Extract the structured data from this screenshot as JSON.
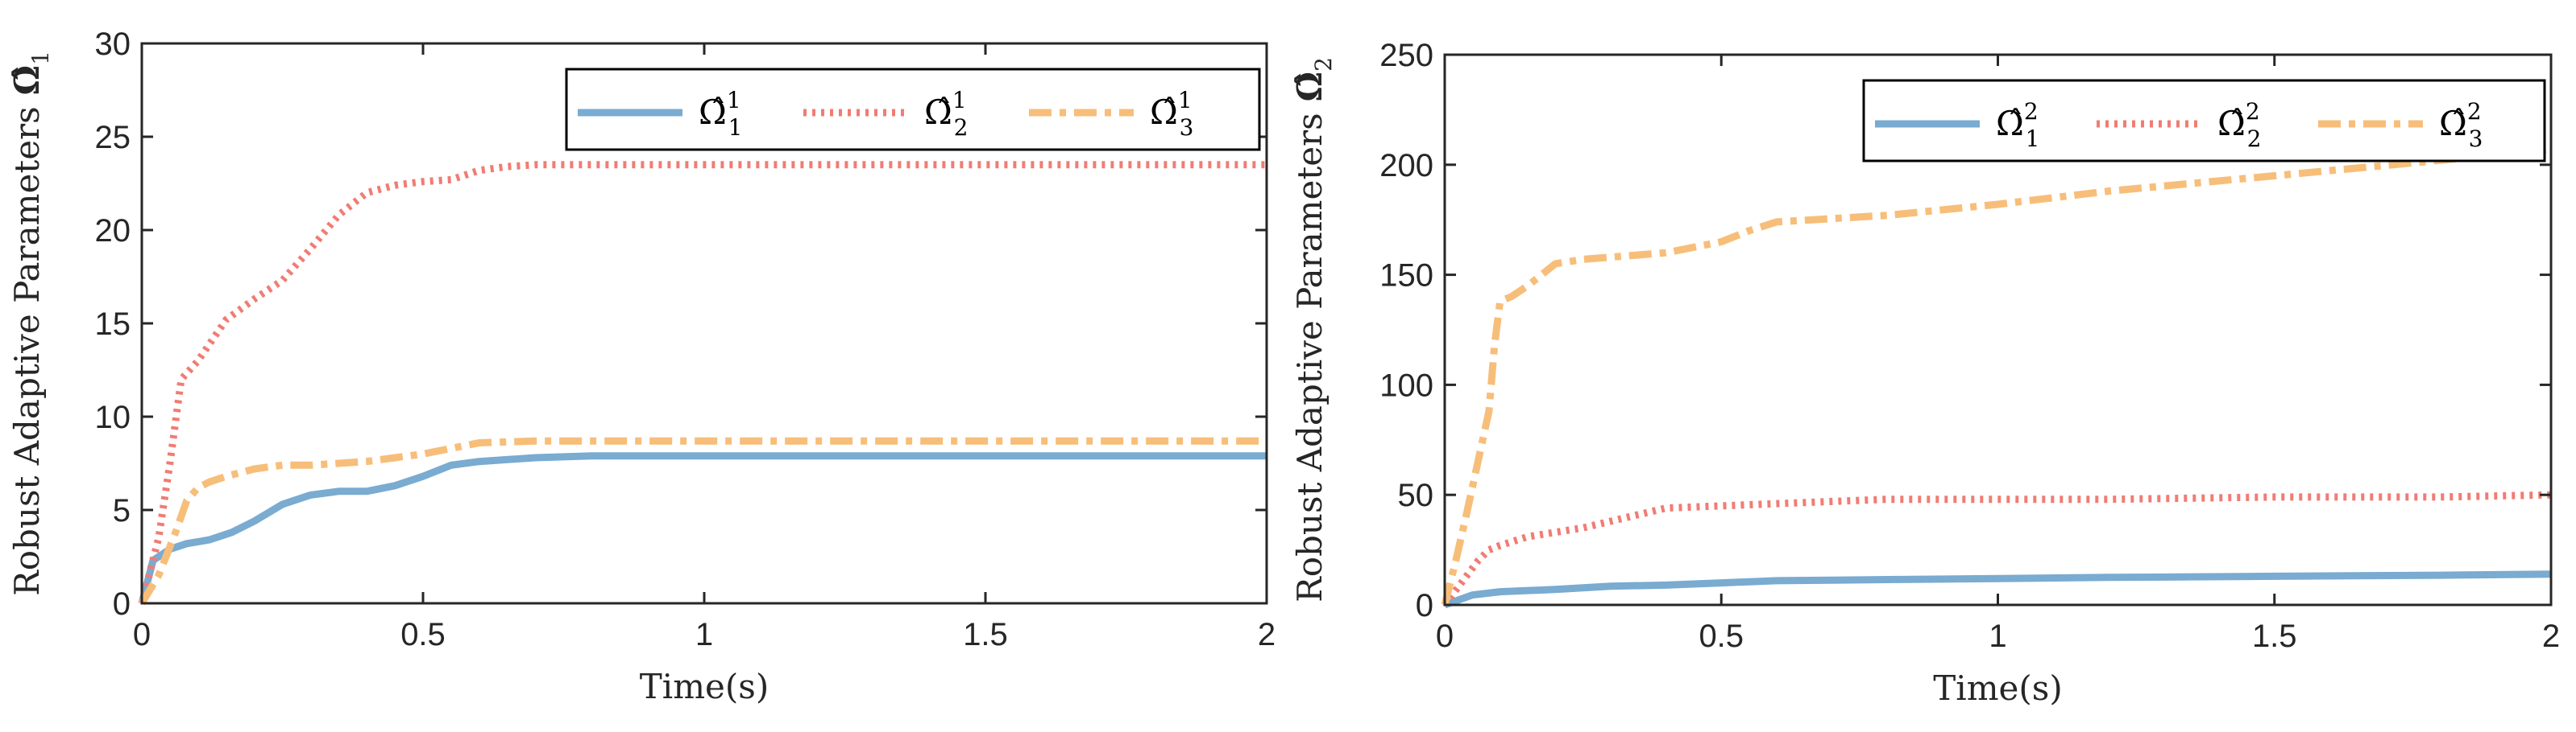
{
  "chart_data": [
    {
      "type": "line",
      "title": "",
      "xlabel": "Time(s)",
      "ylabel": "Robust Adaptive Parameters",
      "ylabel_symbol": "Ω̂",
      "ylabel_subscript": "1",
      "xlim": [
        0,
        2
      ],
      "ylim": [
        0,
        30
      ],
      "xticks": [
        "0",
        "0.5",
        "1",
        "1.5",
        "2"
      ],
      "yticks": [
        "0",
        "5",
        "10",
        "15",
        "20",
        "25",
        "30"
      ],
      "legend_position": "top-right",
      "series": [
        {
          "name": "Ω̂",
          "sub": "1",
          "sup": "1",
          "color": "#7aabd1",
          "style": "solid",
          "x": [
            0,
            0.02,
            0.05,
            0.08,
            0.12,
            0.16,
            0.2,
            0.25,
            0.3,
            0.35,
            0.4,
            0.45,
            0.5,
            0.55,
            0.6,
            0.7,
            0.8,
            1.0,
            1.5,
            2.0
          ],
          "y": [
            0,
            2.3,
            2.9,
            3.2,
            3.4,
            3.8,
            4.4,
            5.3,
            5.8,
            6.0,
            6.0,
            6.3,
            6.8,
            7.4,
            7.6,
            7.8,
            7.9,
            7.9,
            7.9,
            7.9
          ]
        },
        {
          "name": "Ω̂",
          "sub": "2",
          "sup": "1",
          "color": "#f07c74",
          "style": "dotted",
          "x": [
            0,
            0.03,
            0.05,
            0.07,
            0.1,
            0.15,
            0.2,
            0.25,
            0.3,
            0.35,
            0.4,
            0.45,
            0.5,
            0.55,
            0.6,
            0.65,
            0.7,
            0.8,
            1.0,
            1.5,
            2.0
          ],
          "y": [
            0,
            3.5,
            7.5,
            12.0,
            13.0,
            15.2,
            16.3,
            17.3,
            19.0,
            20.8,
            22.0,
            22.4,
            22.6,
            22.7,
            23.2,
            23.4,
            23.5,
            23.5,
            23.5,
            23.5,
            23.5
          ]
        },
        {
          "name": "Ω̂",
          "sub": "3",
          "sup": "1",
          "color": "#f7be7a",
          "style": "dashdot",
          "x": [
            0,
            0.03,
            0.06,
            0.08,
            0.1,
            0.12,
            0.15,
            0.2,
            0.25,
            0.3,
            0.35,
            0.4,
            0.45,
            0.5,
            0.55,
            0.6,
            0.7,
            0.8,
            1.0,
            1.5,
            2.0
          ],
          "y": [
            0,
            1.5,
            3.8,
            5.5,
            6.2,
            6.5,
            6.8,
            7.2,
            7.4,
            7.4,
            7.5,
            7.6,
            7.8,
            8.0,
            8.3,
            8.6,
            8.7,
            8.7,
            8.7,
            8.7,
            8.7
          ]
        }
      ]
    },
    {
      "type": "line",
      "title": "",
      "xlabel": "Time(s)",
      "ylabel": "Robust Adaptive Parameters",
      "ylabel_symbol": "Ω̂",
      "ylabel_subscript": "2",
      "xlim": [
        0,
        2
      ],
      "ylim": [
        0,
        250
      ],
      "xticks": [
        "0",
        "0.5",
        "1",
        "1.5",
        "2"
      ],
      "yticks": [
        "0",
        "50",
        "100",
        "150",
        "200",
        "250"
      ],
      "legend_position": "top-right",
      "series": [
        {
          "name": "Ω̂",
          "sub": "1",
          "sup": "2",
          "color": "#7aabd1",
          "style": "solid",
          "x": [
            0,
            0.05,
            0.1,
            0.2,
            0.3,
            0.4,
            0.5,
            0.6,
            0.8,
            1.0,
            1.2,
            1.5,
            1.8,
            2.0
          ],
          "y": [
            0,
            4.5,
            6,
            7,
            8.5,
            9,
            10,
            11,
            11.5,
            12,
            12.5,
            13,
            13.5,
            14
          ]
        },
        {
          "name": "Ω̂",
          "sub": "2",
          "sup": "2",
          "color": "#f07c74",
          "style": "dotted",
          "x": [
            0,
            0.03,
            0.06,
            0.08,
            0.1,
            0.15,
            0.2,
            0.25,
            0.3,
            0.35,
            0.4,
            0.5,
            0.6,
            0.7,
            0.8,
            1.0,
            1.2,
            1.5,
            1.8,
            2.0
          ],
          "y": [
            0,
            10,
            20,
            25,
            27,
            31,
            33,
            35,
            38,
            41,
            44,
            45,
            46,
            47,
            48,
            48,
            48,
            49,
            49,
            50
          ]
        },
        {
          "name": "Ω̂",
          "sub": "3",
          "sup": "2",
          "color": "#f7be7a",
          "style": "dashdot",
          "x": [
            0,
            0.02,
            0.04,
            0.06,
            0.08,
            0.09,
            0.1,
            0.12,
            0.15,
            0.2,
            0.25,
            0.3,
            0.4,
            0.5,
            0.55,
            0.6,
            0.8,
            1.0,
            1.2,
            1.5,
            1.8,
            2.0
          ],
          "y": [
            0,
            20,
            42,
            65,
            88,
            118,
            138,
            140,
            145,
            155,
            157,
            158,
            160,
            165,
            170,
            174,
            177,
            182,
            188,
            195,
            202,
            207
          ]
        }
      ]
    }
  ]
}
